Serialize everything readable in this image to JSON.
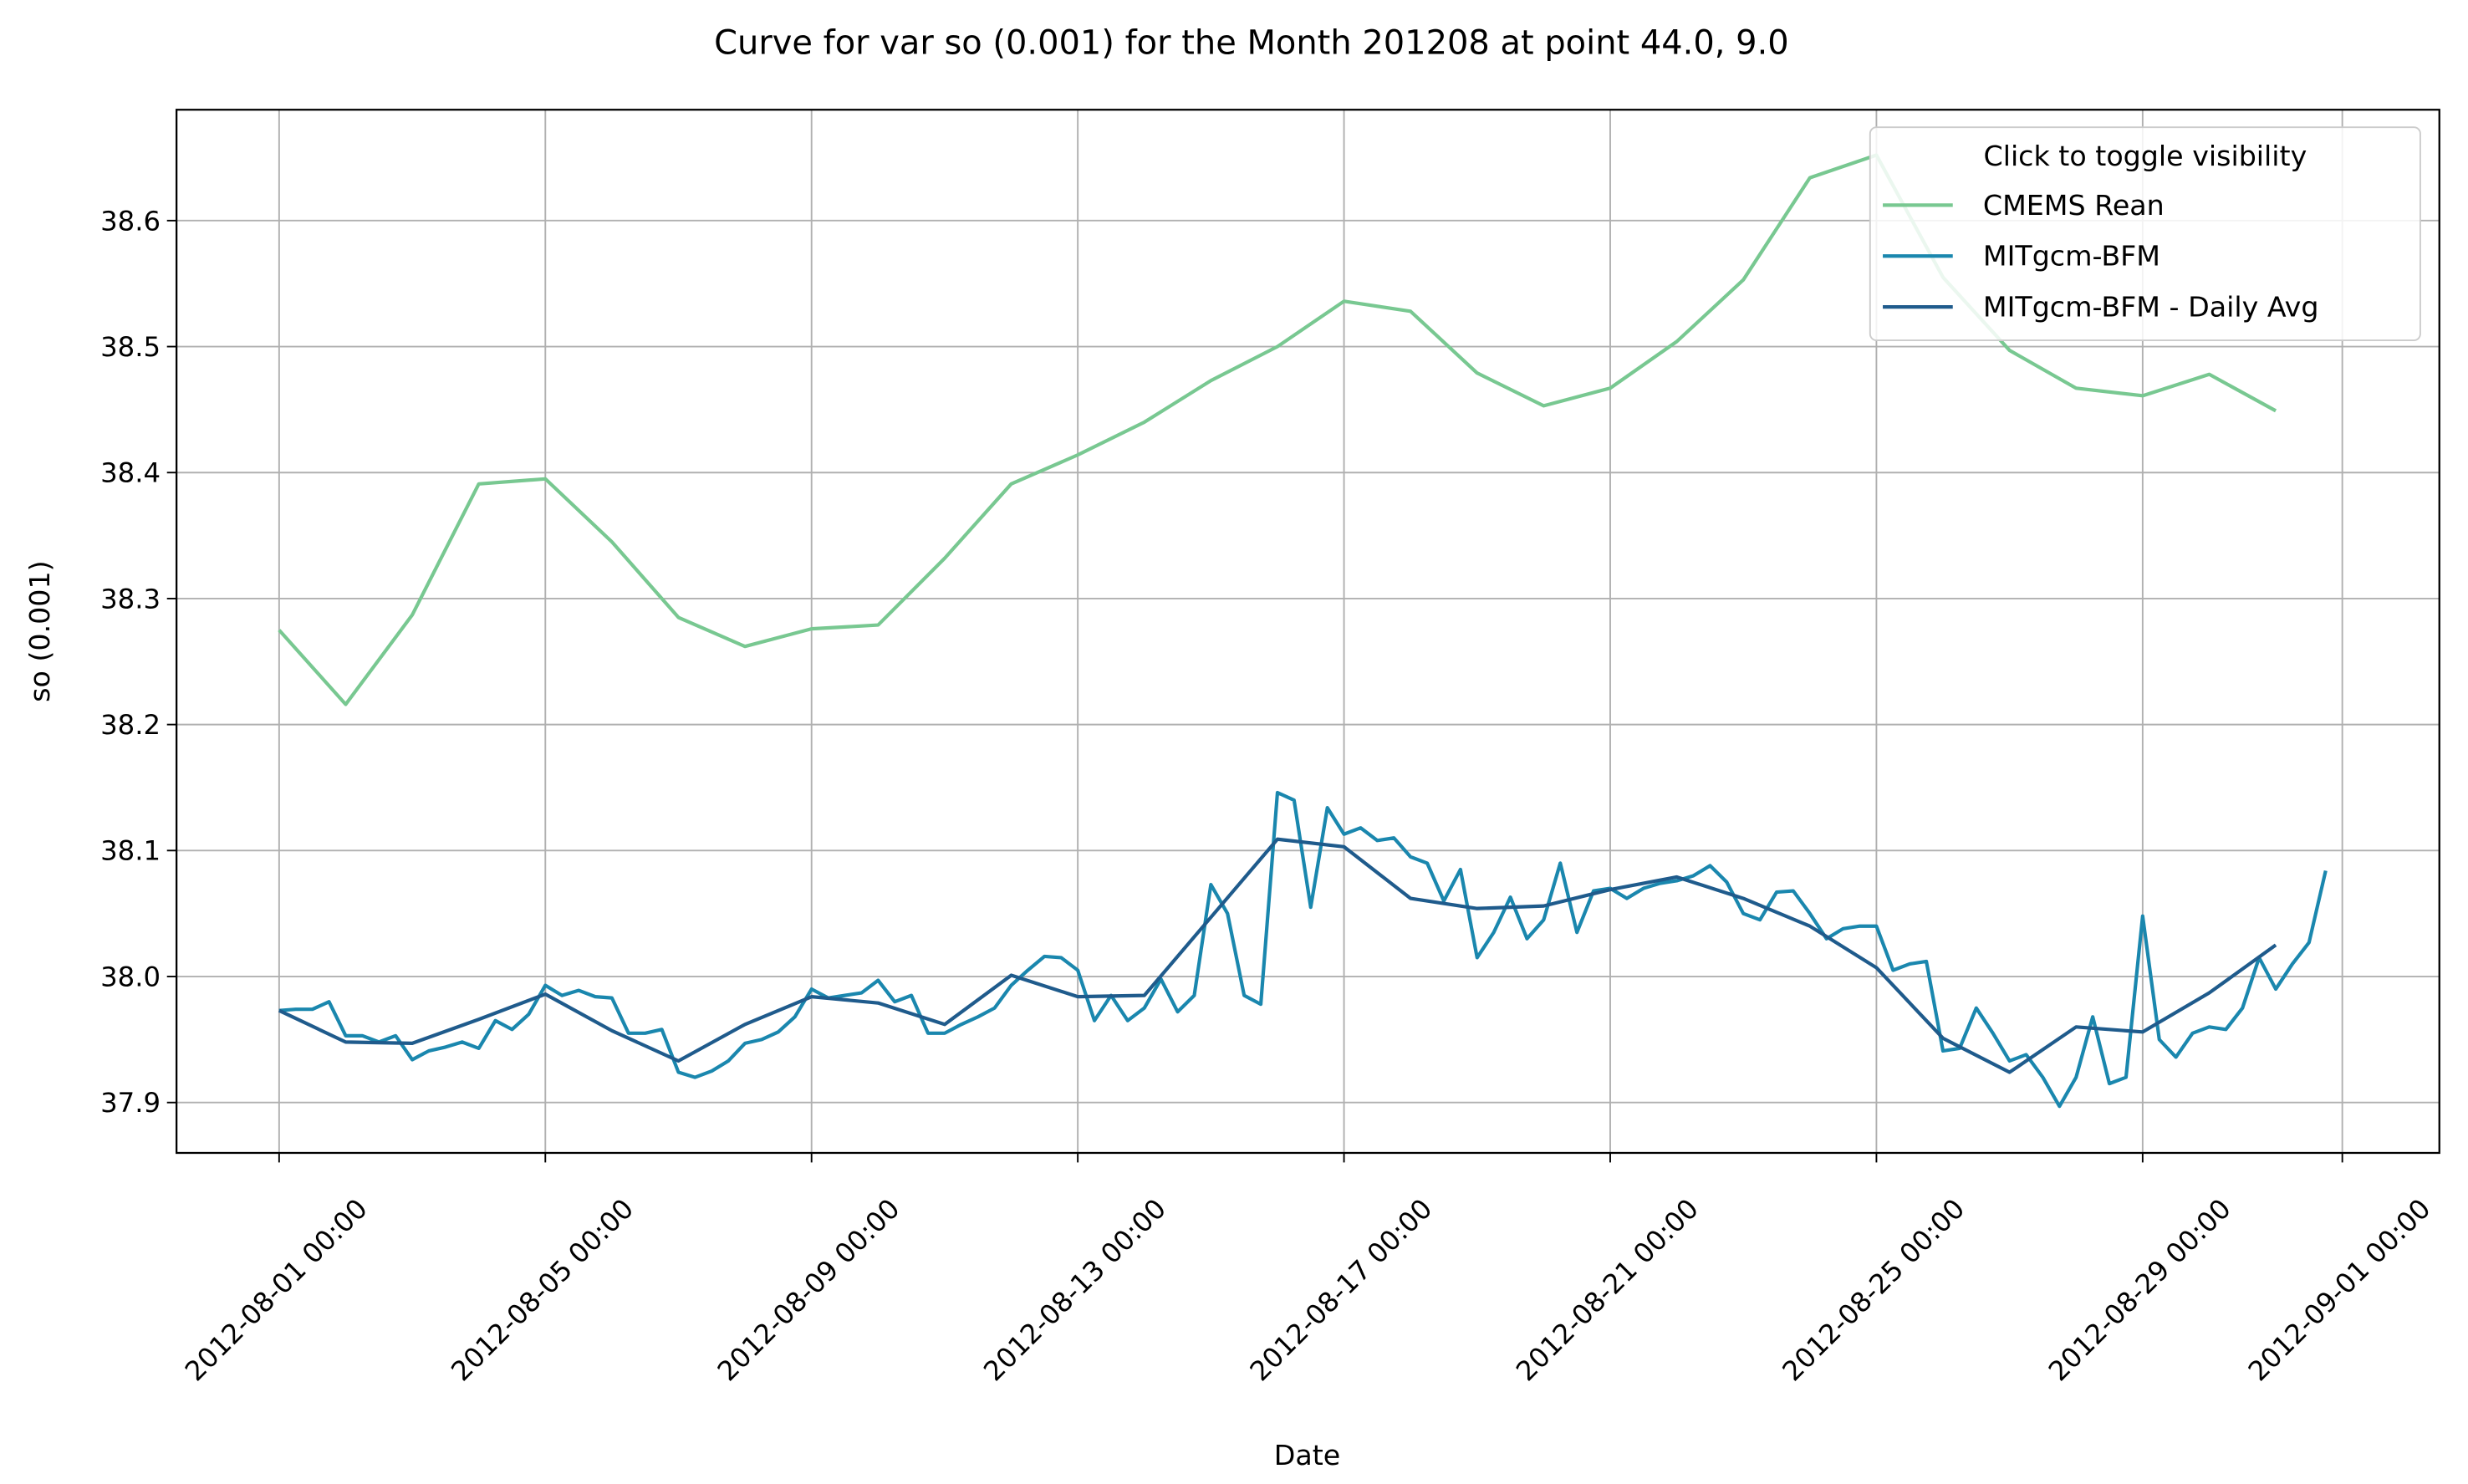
{
  "chart_data": {
    "type": "line",
    "title": "Curve for var so (0.001) for the Month 201208 at point 44.0, 9.0",
    "xlabel": "Date",
    "ylabel": "so (0.001)",
    "legend_title": "Click to toggle visibility",
    "legend_loc": "upper right",
    "grid": true,
    "xlim": [
      "2012-07-30 11:00",
      "2012-09-02 11:00"
    ],
    "xticks": [
      "2012-08-01 00:00",
      "2012-08-05 00:00",
      "2012-08-09 00:00",
      "2012-08-13 00:00",
      "2012-08-17 00:00",
      "2012-08-21 00:00",
      "2012-08-25 00:00",
      "2012-08-29 00:00",
      "2012-09-01 00:00"
    ],
    "ylim": [
      37.86,
      38.688
    ],
    "yticks": [
      37.9,
      {
        "value": 38,
        "label": "38.0"
      },
      38.1,
      38.2,
      38.3,
      38.4,
      38.5,
      38.6
    ],
    "series": [
      {
        "name": "CMEMS Rean",
        "color": "#78c891",
        "x": [
          "2012-08-01 00:00",
          "2012-08-02 00:00",
          "2012-08-03 00:00",
          "2012-08-04 00:00",
          "2012-08-05 00:00",
          "2012-08-06 00:00",
          "2012-08-07 00:00",
          "2012-08-08 00:00",
          "2012-08-09 00:00",
          "2012-08-10 00:00",
          "2012-08-11 00:00",
          "2012-08-12 00:00",
          "2012-08-13 00:00",
          "2012-08-14 00:00",
          "2012-08-15 00:00",
          "2012-08-16 00:00",
          "2012-08-17 00:00",
          "2012-08-18 00:00",
          "2012-08-19 00:00",
          "2012-08-20 00:00",
          "2012-08-21 00:00",
          "2012-08-22 00:00",
          "2012-08-23 00:00",
          "2012-08-24 00:00",
          "2012-08-25 00:00",
          "2012-08-26 00:00",
          "2012-08-27 00:00",
          "2012-08-28 00:00",
          "2012-08-29 00:00",
          "2012-08-30 00:00",
          "2012-08-31 00:00"
        ],
        "values": [
          38.275,
          38.216,
          38.287,
          38.391,
          38.395,
          38.345,
          38.285,
          38.262,
          38.276,
          38.279,
          38.332,
          38.391,
          38.414,
          38.44,
          38.473,
          38.5,
          38.536,
          38.528,
          38.479,
          38.453,
          38.467,
          38.504,
          38.553,
          38.634,
          38.652,
          38.555,
          38.497,
          38.467,
          38.461,
          38.478,
          38.449
        ]
      },
      {
        "name": "MITgcm-BFM",
        "color": "#1a87ae",
        "x": [
          "2012-08-01 00:00",
          "2012-08-01 06:00",
          "2012-08-01 12:00",
          "2012-08-01 18:00",
          "2012-08-02 00:00",
          "2012-08-02 06:00",
          "2012-08-02 12:00",
          "2012-08-02 18:00",
          "2012-08-03 00:00",
          "2012-08-03 06:00",
          "2012-08-03 12:00",
          "2012-08-03 18:00",
          "2012-08-04 00:00",
          "2012-08-04 06:00",
          "2012-08-04 12:00",
          "2012-08-04 18:00",
          "2012-08-05 00:00",
          "2012-08-05 06:00",
          "2012-08-05 12:00",
          "2012-08-05 18:00",
          "2012-08-06 00:00",
          "2012-08-06 06:00",
          "2012-08-06 12:00",
          "2012-08-06 18:00",
          "2012-08-07 00:00",
          "2012-08-07 06:00",
          "2012-08-07 12:00",
          "2012-08-07 18:00",
          "2012-08-08 00:00",
          "2012-08-08 06:00",
          "2012-08-08 12:00",
          "2012-08-08 18:00",
          "2012-08-09 00:00",
          "2012-08-09 06:00",
          "2012-08-09 12:00",
          "2012-08-09 18:00",
          "2012-08-10 00:00",
          "2012-08-10 06:00",
          "2012-08-10 12:00",
          "2012-08-10 18:00",
          "2012-08-11 00:00",
          "2012-08-11 06:00",
          "2012-08-11 12:00",
          "2012-08-11 18:00",
          "2012-08-12 00:00",
          "2012-08-12 06:00",
          "2012-08-12 12:00",
          "2012-08-12 18:00",
          "2012-08-13 00:00",
          "2012-08-13 06:00",
          "2012-08-13 12:00",
          "2012-08-13 18:00",
          "2012-08-14 00:00",
          "2012-08-14 06:00",
          "2012-08-14 12:00",
          "2012-08-14 18:00",
          "2012-08-15 00:00",
          "2012-08-15 06:00",
          "2012-08-15 12:00",
          "2012-08-15 18:00",
          "2012-08-16 00:00",
          "2012-08-16 06:00",
          "2012-08-16 12:00",
          "2012-08-16 18:00",
          "2012-08-17 00:00",
          "2012-08-17 06:00",
          "2012-08-17 12:00",
          "2012-08-17 18:00",
          "2012-08-18 00:00",
          "2012-08-18 06:00",
          "2012-08-18 12:00",
          "2012-08-18 18:00",
          "2012-08-19 00:00",
          "2012-08-19 06:00",
          "2012-08-19 12:00",
          "2012-08-19 18:00",
          "2012-08-20 00:00",
          "2012-08-20 06:00",
          "2012-08-20 12:00",
          "2012-08-20 18:00",
          "2012-08-21 00:00",
          "2012-08-21 06:00",
          "2012-08-21 12:00",
          "2012-08-21 18:00",
          "2012-08-22 00:00",
          "2012-08-22 06:00",
          "2012-08-22 12:00",
          "2012-08-22 18:00",
          "2012-08-23 00:00",
          "2012-08-23 06:00",
          "2012-08-23 12:00",
          "2012-08-23 18:00",
          "2012-08-24 00:00",
          "2012-08-24 06:00",
          "2012-08-24 12:00",
          "2012-08-24 18:00",
          "2012-08-25 00:00",
          "2012-08-25 06:00",
          "2012-08-25 12:00",
          "2012-08-25 18:00",
          "2012-08-26 00:00",
          "2012-08-26 06:00",
          "2012-08-26 12:00",
          "2012-08-26 18:00",
          "2012-08-27 00:00",
          "2012-08-27 06:00",
          "2012-08-27 12:00",
          "2012-08-27 18:00",
          "2012-08-28 00:00",
          "2012-08-28 06:00",
          "2012-08-28 12:00",
          "2012-08-28 18:00",
          "2012-08-29 00:00",
          "2012-08-29 06:00",
          "2012-08-29 12:00",
          "2012-08-29 18:00",
          "2012-08-30 00:00",
          "2012-08-30 06:00",
          "2012-08-30 12:00",
          "2012-08-30 18:00",
          "2012-08-31 00:00",
          "2012-08-31 06:00",
          "2012-08-31 12:00",
          "2012-08-31 18:00"
        ],
        "values": [
          37.973,
          37.974,
          37.974,
          37.98,
          37.953,
          37.953,
          37.948,
          37.953,
          37.934,
          37.941,
          37.944,
          37.948,
          37.943,
          37.965,
          37.958,
          37.97,
          37.993,
          37.985,
          37.989,
          37.984,
          37.983,
          37.955,
          37.955,
          37.958,
          37.924,
          37.92,
          37.925,
          37.933,
          37.947,
          37.95,
          37.956,
          37.968,
          37.99,
          37.983,
          37.985,
          37.987,
          37.997,
          37.98,
          37.985,
          37.955,
          37.955,
          37.962,
          37.968,
          37.975,
          37.993,
          38.005,
          38.016,
          38.015,
          38.005,
          37.965,
          37.985,
          37.965,
          37.975,
          37.998,
          37.972,
          37.985,
          38.073,
          38.05,
          37.985,
          37.978,
          38.146,
          38.14,
          38.055,
          38.134,
          38.113,
          38.118,
          38.108,
          38.11,
          38.095,
          38.09,
          38.06,
          38.085,
          38.015,
          38.035,
          38.063,
          38.03,
          38.045,
          38.09,
          38.035,
          38.068,
          38.07,
          38.062,
          38.07,
          38.074,
          38.076,
          38.08,
          38.088,
          38.075,
          38.05,
          38.045,
          38.067,
          38.068,
          38.05,
          38.03,
          38.038,
          38.04,
          38.04,
          38.005,
          38.01,
          38.012,
          37.941,
          37.943,
          37.975,
          37.955,
          37.933,
          37.938,
          37.92,
          37.897,
          37.92,
          37.968,
          37.915,
          37.92,
          38.048,
          37.95,
          37.936,
          37.955,
          37.96,
          37.958,
          37.975,
          38.015,
          37.99,
          38.01,
          38.027,
          38.084
        ]
      },
      {
        "name": "MITgcm-BFM - Daily Avg",
        "color": "#1f5b8c",
        "x": [
          "2012-08-01 00:00",
          "2012-08-02 00:00",
          "2012-08-03 00:00",
          "2012-08-04 00:00",
          "2012-08-05 00:00",
          "2012-08-06 00:00",
          "2012-08-07 00:00",
          "2012-08-08 00:00",
          "2012-08-09 00:00",
          "2012-08-10 00:00",
          "2012-08-11 00:00",
          "2012-08-12 00:00",
          "2012-08-13 00:00",
          "2012-08-14 00:00",
          "2012-08-15 00:00",
          "2012-08-16 00:00",
          "2012-08-17 00:00",
          "2012-08-18 00:00",
          "2012-08-19 00:00",
          "2012-08-20 00:00",
          "2012-08-21 00:00",
          "2012-08-22 00:00",
          "2012-08-23 00:00",
          "2012-08-24 00:00",
          "2012-08-25 00:00",
          "2012-08-26 00:00",
          "2012-08-27 00:00",
          "2012-08-28 00:00",
          "2012-08-29 00:00",
          "2012-08-30 00:00",
          "2012-08-31 00:00"
        ],
        "values": [
          37.973,
          37.948,
          37.947,
          37.966,
          37.986,
          37.957,
          37.933,
          37.962,
          37.984,
          37.979,
          37.962,
          38.001,
          37.984,
          37.985,
          38.047,
          38.109,
          38.103,
          38.062,
          38.054,
          38.056,
          38.069,
          38.079,
          38.062,
          38.04,
          38.007,
          37.951,
          37.924,
          37.96,
          37.956,
          37.987,
          38.025
        ]
      }
    ]
  }
}
